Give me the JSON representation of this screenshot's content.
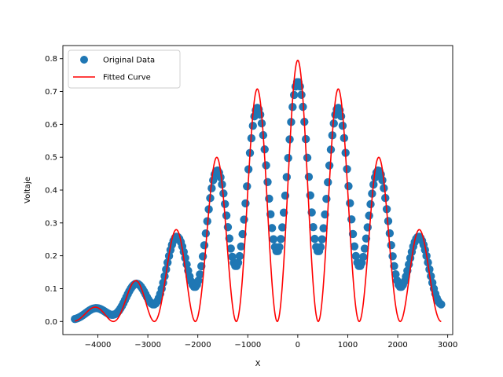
{
  "chart_data": {
    "type": "scatter",
    "xlabel": "X",
    "ylabel": "Voltaje",
    "xlim": [
      -4700,
      3100
    ],
    "ylim": [
      -0.04,
      0.84
    ],
    "xticks": [
      -4000,
      -3000,
      -2000,
      -1000,
      0,
      1000,
      2000,
      3000
    ],
    "yticks": [
      0.0,
      0.1,
      0.2,
      0.3,
      0.4,
      0.5,
      0.6,
      0.7,
      0.8
    ],
    "grid": false,
    "legend_position": "top-left",
    "colors": {
      "data": "#1f77b4",
      "fit": "#ff0000"
    },
    "series": [
      {
        "name": "Original Data",
        "kind": "scatter",
        "x_range": [
          -4460,
          2870
        ],
        "points": 250,
        "model": {
          "amplitude": 0.73,
          "period": 820,
          "shift": 0,
          "envelope_width": 520,
          "baseline": 0.0,
          "min_fraction": 0.3
        }
      },
      {
        "name": "Fitted Curve",
        "kind": "line",
        "x_range": [
          -4460,
          2870
        ],
        "model": {
          "amplitude": 0.795,
          "period": 820,
          "shift": 0,
          "envelope_width": 520
        }
      }
    ]
  }
}
